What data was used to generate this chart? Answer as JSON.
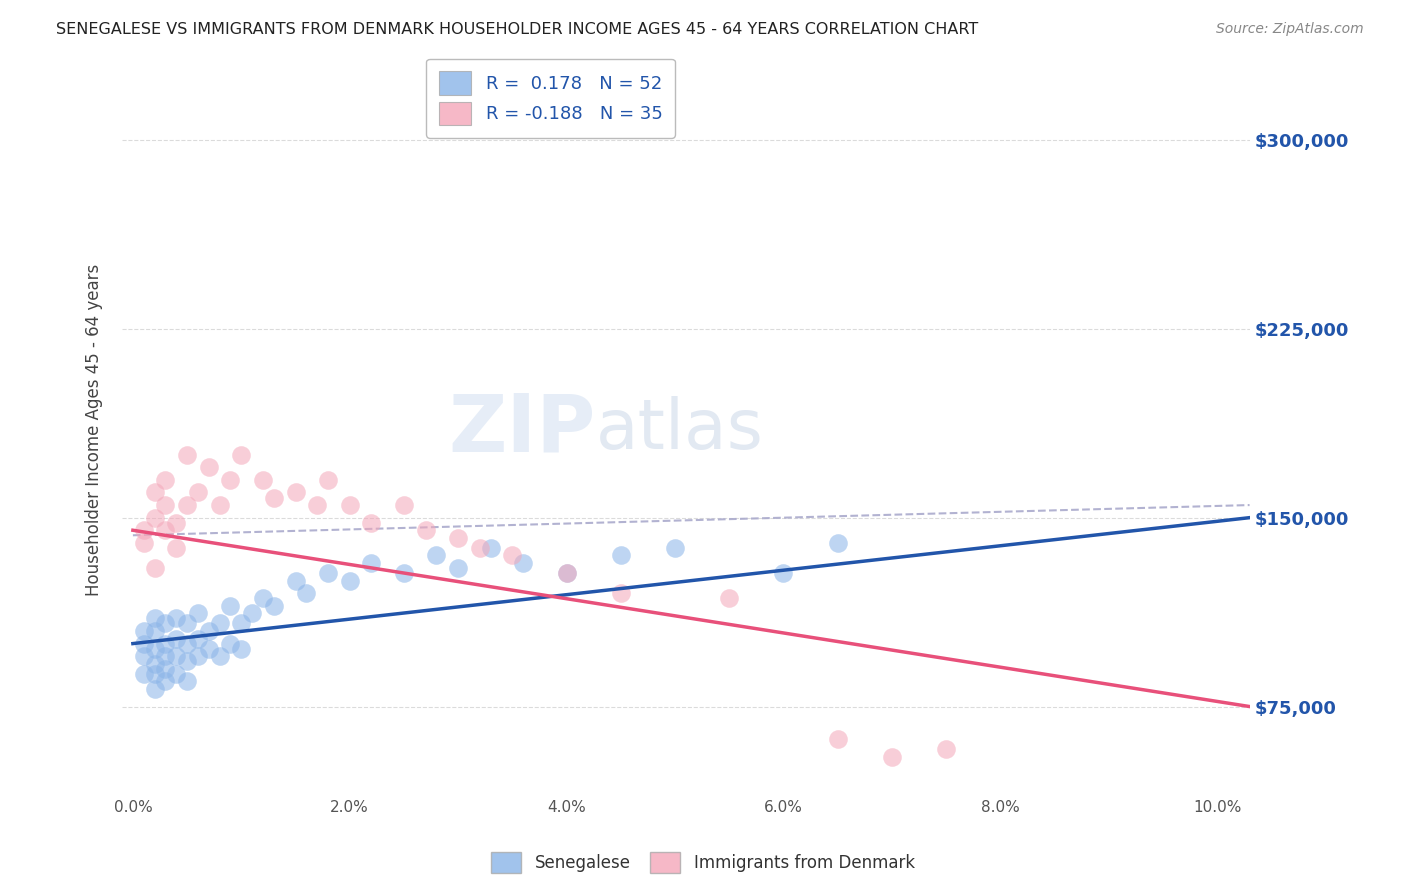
{
  "title": "SENEGALESE VS IMMIGRANTS FROM DENMARK HOUSEHOLDER INCOME AGES 45 - 64 YEARS CORRELATION CHART",
  "source": "Source: ZipAtlas.com",
  "ylabel": "Householder Income Ages 45 - 64 years",
  "yticks": [
    75000,
    150000,
    225000,
    300000
  ],
  "ytick_labels": [
    "$75,000",
    "$150,000",
    "$225,000",
    "$300,000"
  ],
  "xticks": [
    0.0,
    0.02,
    0.04,
    0.06,
    0.08,
    0.1
  ],
  "xlim": [
    -0.001,
    0.103
  ],
  "ylim": [
    40000,
    330000
  ],
  "R_blue": 0.178,
  "N_blue": 52,
  "R_pink": -0.188,
  "N_pink": 35,
  "legend_label_blue": "Senegalese",
  "legend_label_pink": "Immigrants from Denmark",
  "blue_color": "#8ab4e8",
  "pink_color": "#f4a7b9",
  "blue_line_color": "#2255aa",
  "pink_line_color": "#e8507a",
  "dashed_line_color": "#aaaacc",
  "background_color": "#ffffff",
  "watermark_zip": "ZIP",
  "watermark_atlas": "atlas",
  "blue_scatter_x": [
    0.001,
    0.001,
    0.001,
    0.001,
    0.002,
    0.002,
    0.002,
    0.002,
    0.002,
    0.002,
    0.003,
    0.003,
    0.003,
    0.003,
    0.003,
    0.004,
    0.004,
    0.004,
    0.004,
    0.005,
    0.005,
    0.005,
    0.005,
    0.006,
    0.006,
    0.006,
    0.007,
    0.007,
    0.008,
    0.008,
    0.009,
    0.009,
    0.01,
    0.01,
    0.011,
    0.012,
    0.013,
    0.015,
    0.016,
    0.018,
    0.02,
    0.022,
    0.025,
    0.028,
    0.03,
    0.033,
    0.036,
    0.04,
    0.045,
    0.05,
    0.06,
    0.065
  ],
  "blue_scatter_y": [
    100000,
    95000,
    105000,
    88000,
    92000,
    98000,
    105000,
    110000,
    88000,
    82000,
    95000,
    100000,
    108000,
    90000,
    85000,
    95000,
    102000,
    110000,
    88000,
    93000,
    100000,
    108000,
    85000,
    95000,
    102000,
    112000,
    98000,
    105000,
    95000,
    108000,
    100000,
    115000,
    98000,
    108000,
    112000,
    118000,
    115000,
    125000,
    120000,
    128000,
    125000,
    132000,
    128000,
    135000,
    130000,
    138000,
    132000,
    128000,
    135000,
    138000,
    128000,
    140000
  ],
  "pink_scatter_x": [
    0.001,
    0.001,
    0.002,
    0.002,
    0.002,
    0.003,
    0.003,
    0.003,
    0.004,
    0.004,
    0.005,
    0.005,
    0.006,
    0.007,
    0.008,
    0.009,
    0.01,
    0.012,
    0.013,
    0.015,
    0.017,
    0.018,
    0.02,
    0.022,
    0.025,
    0.027,
    0.03,
    0.032,
    0.035,
    0.04,
    0.045,
    0.055,
    0.065,
    0.07,
    0.075
  ],
  "pink_scatter_y": [
    140000,
    145000,
    130000,
    150000,
    160000,
    145000,
    155000,
    165000,
    138000,
    148000,
    155000,
    175000,
    160000,
    170000,
    155000,
    165000,
    175000,
    165000,
    158000,
    160000,
    155000,
    165000,
    155000,
    148000,
    155000,
    145000,
    142000,
    138000,
    135000,
    128000,
    120000,
    118000,
    62000,
    55000,
    58000
  ],
  "blue_line_x0": 0.0,
  "blue_line_y0": 100000,
  "blue_line_x1": 0.103,
  "blue_line_y1": 150000,
  "pink_line_x0": 0.0,
  "pink_line_y0": 145000,
  "pink_line_x1": 0.103,
  "pink_line_y1": 75000,
  "dash_line_x0": 0.0,
  "dash_line_y0": 143000,
  "dash_line_x1": 0.103,
  "dash_line_y1": 155000
}
